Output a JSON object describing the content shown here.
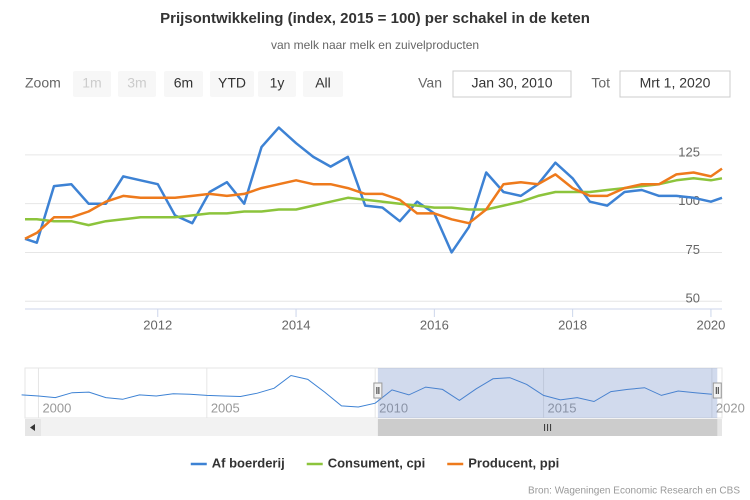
{
  "chart_data": {
    "type": "line",
    "title": "Prijsontwikkeling (index, 2015 = 100) per schakel in de keten",
    "subtitle": "van melk naar melk en zuivelproducten",
    "range_selector": {
      "zoom_label": "Zoom",
      "buttons": [
        "1m",
        "3m",
        "6m",
        "YTD",
        "1y",
        "All"
      ],
      "disabled": [
        true,
        true,
        false,
        false,
        false,
        false
      ],
      "from_label": "Van",
      "from": "Jan 30, 2010",
      "to_label": "Tot",
      "to": "Mrt 1, 2020"
    },
    "x": [
      2010.08,
      2010.25,
      2010.5,
      2010.75,
      2011.0,
      2011.25,
      2011.5,
      2011.75,
      2012.0,
      2012.25,
      2012.5,
      2012.75,
      2013.0,
      2013.25,
      2013.5,
      2013.75,
      2014.0,
      2014.25,
      2014.5,
      2014.75,
      2015.0,
      2015.25,
      2015.5,
      2015.75,
      2016.0,
      2016.25,
      2016.5,
      2016.75,
      2017.0,
      2017.25,
      2017.5,
      2017.75,
      2018.0,
      2018.25,
      2018.5,
      2018.75,
      2019.0,
      2019.25,
      2019.5,
      2019.75,
      2020.0,
      2020.16
    ],
    "series": [
      {
        "name": "Af boerderij",
        "color": "#3d82d4",
        "values": [
          82,
          80,
          109,
          110,
          100,
          100,
          114,
          112,
          110,
          94,
          90,
          106,
          111,
          100,
          129,
          139,
          131,
          124,
          119,
          124,
          99,
          98,
          91,
          101,
          95,
          75,
          88,
          116,
          106,
          104,
          110,
          121,
          113,
          101,
          99,
          106,
          107,
          104,
          104,
          103,
          101,
          103
        ]
      },
      {
        "name": "Consument, cpi",
        "color": "#8cc43c",
        "values": [
          92,
          92,
          91,
          91,
          89,
          91,
          92,
          93,
          93,
          93,
          94,
          95,
          95,
          96,
          96,
          97,
          97,
          99,
          101,
          103,
          102,
          101,
          100,
          99,
          98,
          98,
          97,
          97,
          99,
          101,
          104,
          106,
          106,
          106,
          107,
          108,
          109,
          110,
          112,
          113,
          112,
          113
        ]
      },
      {
        "name": "Producent, ppi",
        "color": "#ee7a1c",
        "values": [
          82,
          85,
          93,
          93,
          96,
          101,
          104,
          103,
          103,
          103,
          104,
          105,
          104,
          105,
          108,
          110,
          112,
          110,
          110,
          108,
          105,
          105,
          102,
          95,
          95,
          92,
          90,
          97,
          110,
          111,
          110,
          115,
          108,
          104,
          104,
          108,
          110,
          110,
          115,
          116,
          114,
          118
        ]
      }
    ],
    "xlim": [
      2010.08,
      2020.16
    ],
    "xticks": [
      2012,
      2014,
      2016,
      2018,
      2020
    ],
    "ylim": [
      46,
      146.5
    ],
    "yticks": [
      50,
      75,
      100,
      125
    ],
    "grid": true,
    "legend": "bottom",
    "navigator": {
      "x": [
        1999.5,
        2000.0,
        2000.5,
        2001.0,
        2001.5,
        2002.0,
        2002.5,
        2003.0,
        2003.5,
        2004.0,
        2004.5,
        2005.0,
        2005.5,
        2006.0,
        2006.5,
        2007.0,
        2007.5,
        2008.0,
        2008.5,
        2009.0,
        2009.5,
        2010.0,
        2010.5,
        2011.0,
        2011.5,
        2012.0,
        2012.5,
        2013.0,
        2013.5,
        2014.0,
        2014.5,
        2015.0,
        2015.5,
        2016.0,
        2016.5,
        2017.0,
        2017.5,
        2018.0,
        2018.5,
        2019.0,
        2019.5,
        2020.0
      ],
      "values": [
        100,
        98,
        95,
        104,
        105,
        95,
        92,
        100,
        98,
        102,
        101,
        99,
        98,
        97,
        103,
        112,
        135,
        128,
        105,
        80,
        78,
        85,
        109,
        100,
        114,
        110,
        90,
        111,
        129,
        131,
        119,
        99,
        91,
        95,
        88,
        106,
        110,
        113,
        99,
        107,
        104,
        101
      ],
      "color": "#3d82d4",
      "xlim": [
        1999.6,
        2020.3
      ],
      "ylim": [
        60,
        145
      ],
      "xticks": [
        2000,
        2005,
        2010,
        2015,
        2020
      ]
    },
    "credits": "Bron: Wageningen Economic Research en CBS"
  }
}
